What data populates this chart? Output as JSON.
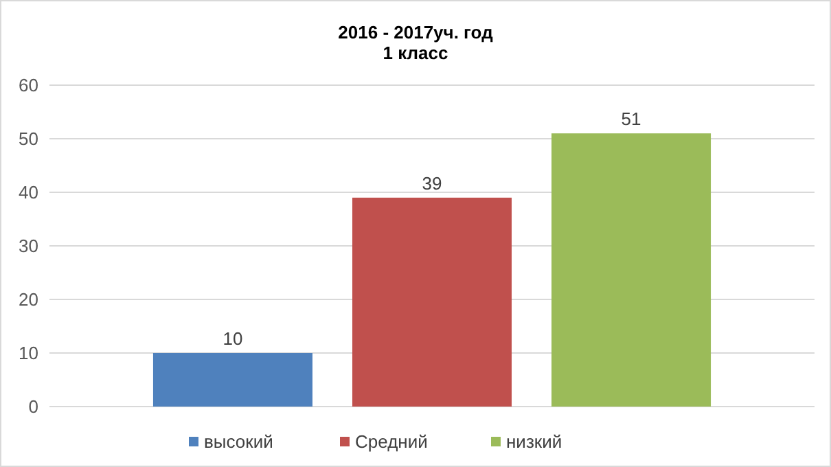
{
  "chart_data": {
    "type": "bar",
    "title": "2016 - 2017уч. год\n1 класс",
    "categories": [
      null
    ],
    "series": [
      {
        "name": "высокий",
        "color": "#4f81bd",
        "values": [
          10
        ]
      },
      {
        "name": "Средний",
        "color": "#c0504d",
        "values": [
          39
        ]
      },
      {
        "name": "низкий",
        "color": "#9bbb59",
        "values": [
          51
        ]
      }
    ],
    "ylim": [
      0,
      60
    ],
    "yticks": [
      0,
      10,
      20,
      30,
      40,
      50,
      60
    ],
    "grid": "y",
    "data_labels": true,
    "legend": "bottom"
  }
}
